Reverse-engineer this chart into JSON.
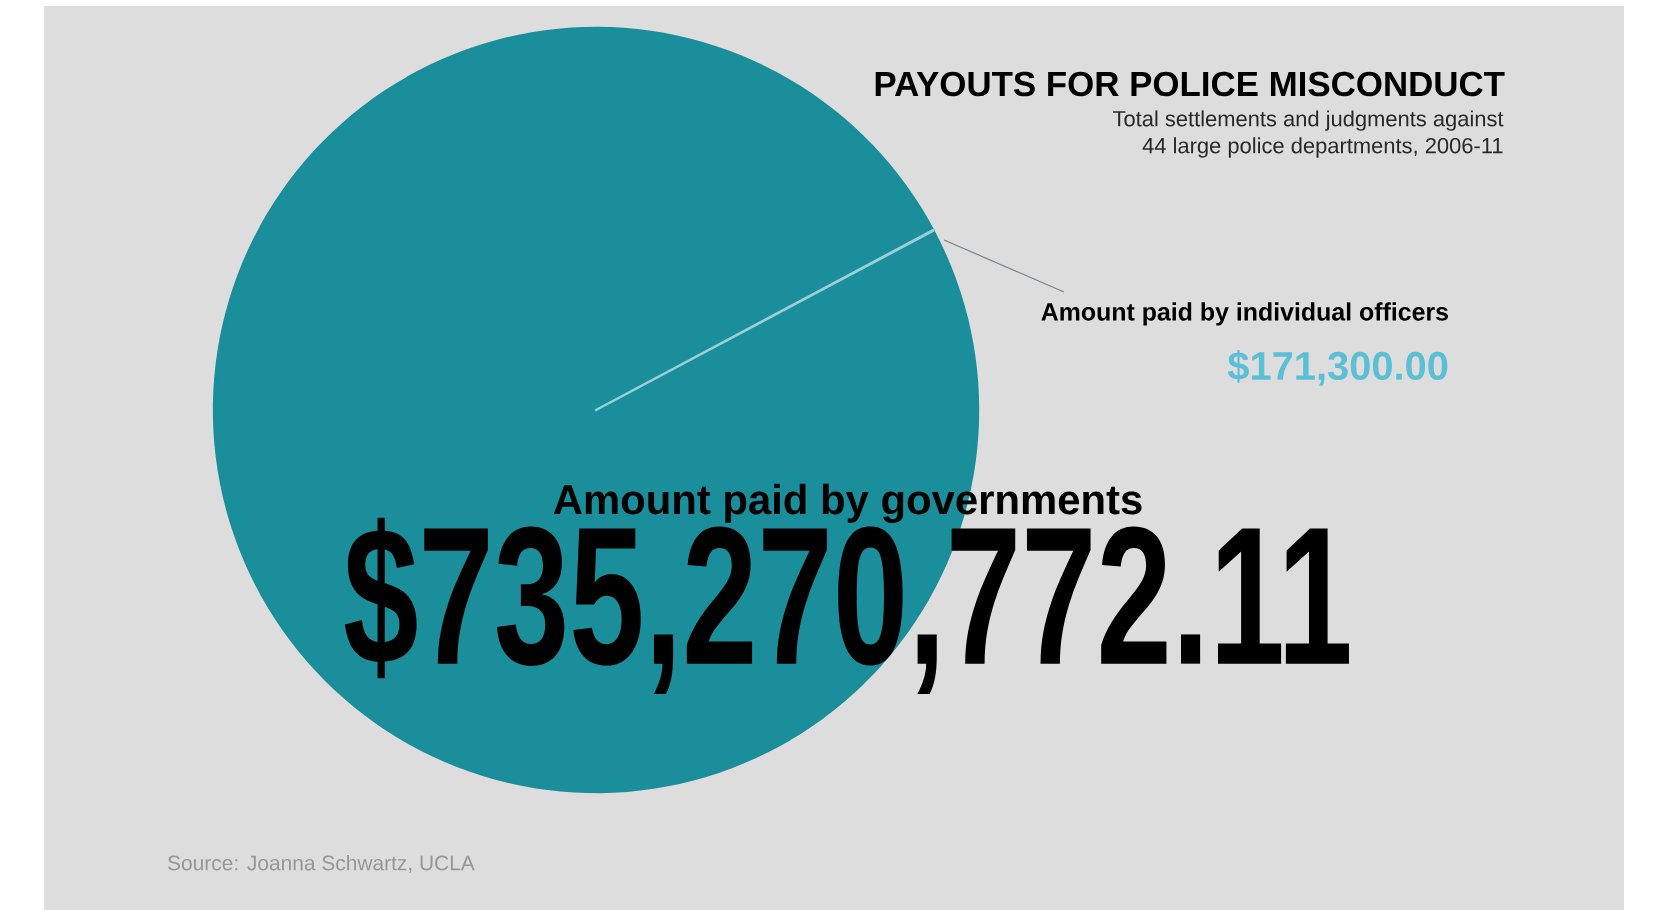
{
  "chart_data": {
    "type": "pie",
    "title": "PAYOUTS FOR POLICE MISCONDUCT",
    "subtitle": "Total settlements and judgments against\n44 large police departments, 2006-11",
    "categories": [
      "Amount paid by governments",
      "Amount paid by individual officers"
    ],
    "values": [
      735270772.11,
      171300.0
    ],
    "value_labels": [
      "$735,270,772.11",
      "$171,300.00"
    ],
    "colors": [
      "#1a8e9b",
      "#9ccfd6"
    ],
    "annotations": [
      "Source: Joanna Schwartz, UCLA"
    ]
  }
}
